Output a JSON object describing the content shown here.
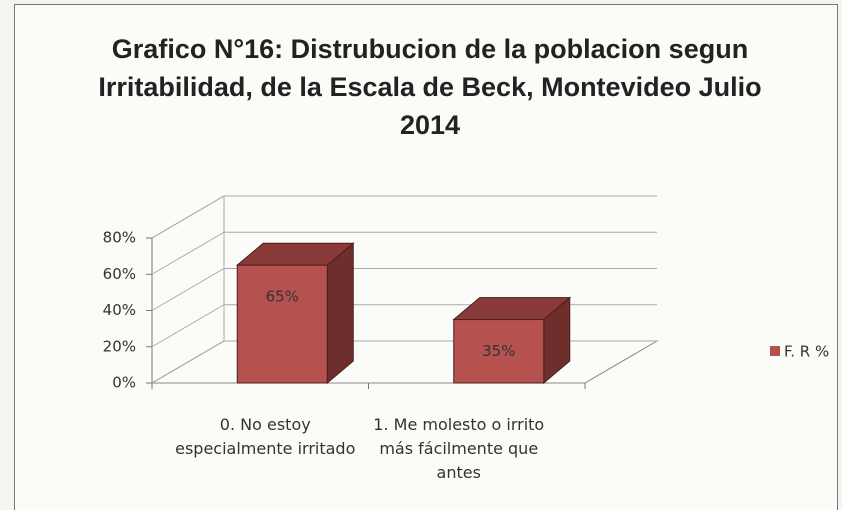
{
  "chart_data": {
    "type": "bar3d",
    "title": "Grafico N°16: Distrubucion de la poblacion segun Irritabilidad, de la Escala de Beck, Montevideo Julio 2014",
    "categories": [
      "0. No estoy especialmente irritado",
      "1. Me molesto o irrito más fácilmente que antes"
    ],
    "series": [
      {
        "name": "F. R %",
        "color": "#b5524f",
        "values": [
          65,
          35
        ],
        "value_labels": [
          "65%",
          "35%"
        ]
      }
    ],
    "ylim": [
      0,
      80
    ],
    "yticks": [
      {
        "value": 0,
        "label": "0%"
      },
      {
        "value": 20,
        "label": "20%"
      },
      {
        "value": 40,
        "label": "40%"
      },
      {
        "value": 60,
        "label": "60%"
      },
      {
        "value": 80,
        "label": "80%"
      }
    ],
    "grid": true,
    "legend": "right"
  }
}
